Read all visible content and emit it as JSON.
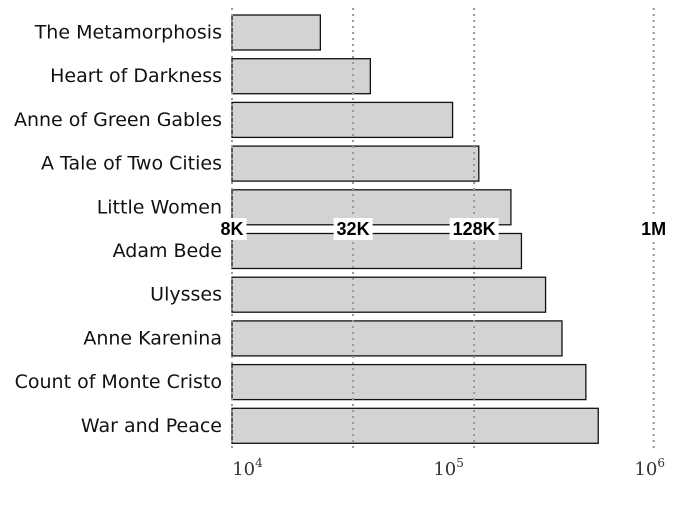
{
  "chart_data": {
    "type": "bar",
    "orientation": "horizontal",
    "x_scale": "log",
    "xlim": [
      8000,
      1100000
    ],
    "categories": [
      "The Metamorphosis",
      "Heart of Darkness",
      "Anne of Green Gables",
      "A Tale of Two Cities",
      "Little Women",
      "Adam Bede",
      "Ulysses",
      "Anne Karenina",
      "Count of Monte Cristo",
      "War and Peace"
    ],
    "values": [
      22000,
      39000,
      100000,
      135000,
      195000,
      220000,
      290000,
      350000,
      460000,
      530000
    ],
    "x_ticks": [
      {
        "value": 10000,
        "base": "10",
        "exp": "4"
      },
      {
        "value": 100000,
        "base": "10",
        "exp": "5"
      },
      {
        "value": 1000000,
        "base": "10",
        "exp": "6"
      }
    ],
    "reference_lines": [
      {
        "value": 8000,
        "label": "8K"
      },
      {
        "value": 32000,
        "label": "32K"
      },
      {
        "value": 128000,
        "label": "128K"
      },
      {
        "value": 1000000,
        "label": "1M"
      }
    ],
    "reference_line_style": "dotted",
    "grid": false,
    "title": "",
    "xlabel": "",
    "ylabel": ""
  },
  "colors": {
    "bar_fill": "#d3d3d3",
    "bar_stroke": "#111111",
    "reference_line": "#999999"
  }
}
